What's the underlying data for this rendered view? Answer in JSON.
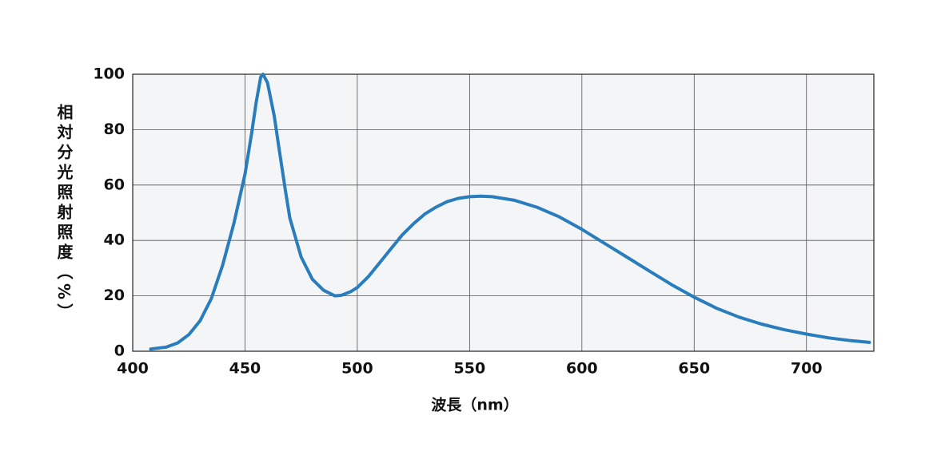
{
  "chart_data": {
    "type": "line",
    "x_label": "波長（nm）",
    "y_label": "相対分光照射照度（%）",
    "x": [
      408,
      415,
      420,
      425,
      430,
      435,
      440,
      445,
      450,
      453,
      455,
      457,
      458,
      460,
      463,
      465,
      468,
      470,
      475,
      480,
      485,
      490,
      493,
      497,
      500,
      505,
      510,
      515,
      520,
      525,
      530,
      535,
      540,
      545,
      550,
      555,
      560,
      570,
      580,
      590,
      600,
      610,
      620,
      630,
      640,
      650,
      660,
      670,
      680,
      690,
      700,
      710,
      720,
      728
    ],
    "values": [
      0.8,
      1.5,
      3,
      6,
      11,
      19,
      31,
      46,
      64,
      79,
      90,
      99,
      100,
      97,
      85,
      74,
      58,
      48,
      34,
      26,
      22,
      20,
      20.2,
      21.5,
      23,
      27,
      32,
      37,
      42,
      46,
      49.5,
      52,
      54,
      55.2,
      55.8,
      56,
      55.8,
      54.5,
      52,
      48.5,
      44,
      39,
      34,
      29,
      24,
      19.5,
      15.5,
      12.3,
      9.8,
      7.8,
      6.2,
      4.8,
      3.8,
      3.2
    ],
    "color": "#2a7dbc",
    "xlim": [
      400,
      730
    ],
    "xticks": [
      400,
      450,
      500,
      550,
      600,
      650,
      700
    ],
    "ylim": [
      0,
      100
    ],
    "yticks": [
      0,
      20,
      40,
      60,
      80,
      100
    ],
    "grid": true
  }
}
